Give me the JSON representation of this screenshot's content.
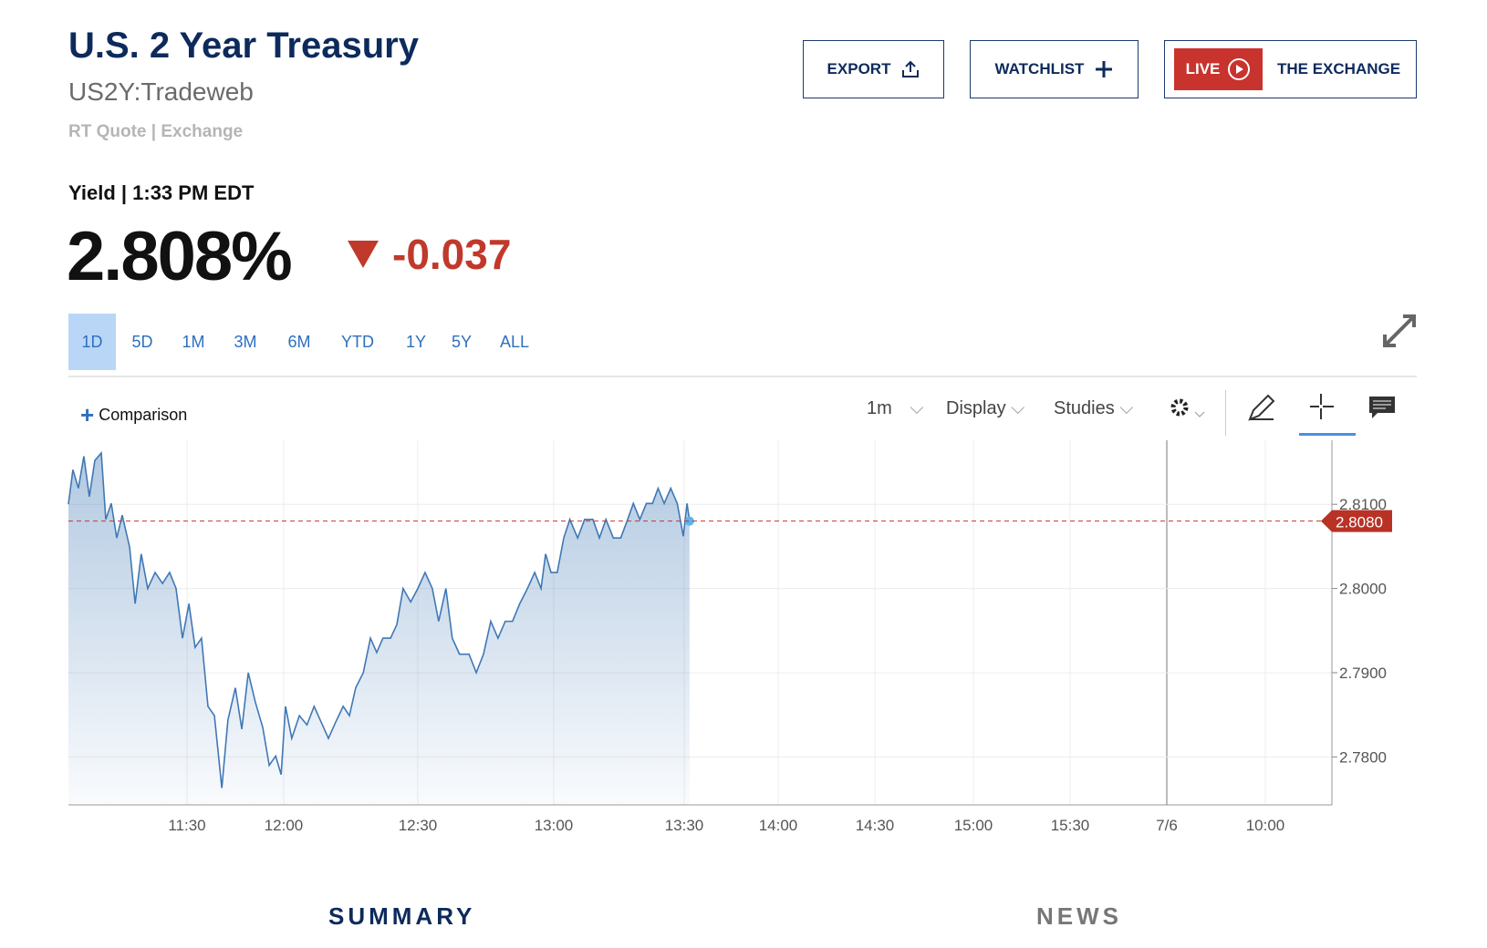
{
  "header": {
    "title": "U.S. 2 Year Treasury",
    "symbol": "US2Y:Tradeweb",
    "source": "RT Quote | Exchange",
    "quote_label": "Yield | 1:33 PM EDT",
    "last": "2.808%",
    "change": "-0.037"
  },
  "buttons": [
    "EXPORT",
    "WATCHLIST"
  ],
  "live": {
    "badge": "LIVE",
    "label": "THE EXCHANGE"
  },
  "ranges": {
    "items": [
      "1D",
      "5D",
      "1M",
      "3M",
      "6M",
      "YTD",
      "1Y",
      "5Y",
      "ALL"
    ],
    "selected": 0
  },
  "toolbar": {
    "comparison": "Comparison",
    "interval": "1m",
    "display": "Display",
    "studies": "Studies"
  },
  "tabs": [
    "SUMMARY",
    "NEWS"
  ],
  "chart_data": {
    "type": "line",
    "grid": true,
    "x": [
      653.2,
      654.6,
      656.3,
      658,
      659.7,
      661.4,
      663.4,
      664.8,
      666.5,
      668.2,
      669.9,
      672.2,
      673.9,
      675.8,
      677.8,
      680.1,
      682.4,
      684.6,
      686.6,
      688.6,
      690.6,
      692.5,
      694.5,
      696.5,
      698.5,
      700.8,
      702.7,
      705,
      707,
      709,
      711.2,
      713.5,
      715.5,
      717.5,
      719.2,
      720.4,
      721.8,
      723.5,
      725.2,
      726.8,
      728.4,
      730,
      731.6,
      733.3,
      734.7,
      736.1,
      737.8,
      739.4,
      740.8,
      742.2,
      743.9,
      745.3,
      746.7,
      748.4,
      750,
      751.6,
      753.2,
      754.6,
      756.2,
      757.6,
      759.2,
      761.3,
      762.9,
      764.5,
      766.1,
      767.7,
      769.3,
      770.9,
      772.5,
      774.2,
      775.8,
      777.2,
      778.2,
      779.4,
      780.8,
      782.3,
      783.7,
      785.5,
      787.1,
      789,
      790.5,
      792,
      793.7,
      795.4,
      797,
      798.3,
      799.8,
      801.3,
      802.7,
      804,
      805.4,
      806.9,
      808.4,
      809.8,
      810.9,
      811.7
    ],
    "series": [
      {
        "name": "US2Y",
        "color": "#3f78b5",
        "values": [
          2.81,
          2.8141,
          2.8119,
          2.8157,
          2.8109,
          2.8152,
          2.8161,
          2.8082,
          2.8101,
          2.806,
          2.8087,
          2.8049,
          2.7982,
          2.8041,
          2.8,
          2.8019,
          2.8006,
          2.8019,
          2.8,
          2.7941,
          2.7982,
          2.793,
          2.7941,
          2.786,
          2.7849,
          2.7763,
          2.7844,
          2.7882,
          2.7833,
          2.79,
          2.7865,
          2.7835,
          2.779,
          2.7801,
          2.7779,
          2.786,
          2.7822,
          2.7849,
          2.7838,
          2.786,
          2.7841,
          2.7822,
          2.7841,
          2.786,
          2.7849,
          2.7882,
          2.79,
          2.7941,
          2.7924,
          2.7941,
          2.7941,
          2.7957,
          2.8,
          2.7984,
          2.8,
          2.8019,
          2.8,
          2.7961,
          2.8,
          2.7941,
          2.7922,
          2.7922,
          2.79,
          2.7922,
          2.7961,
          2.7941,
          2.7961,
          2.7961,
          2.7982,
          2.8,
          2.8019,
          2.8,
          2.8041,
          2.8019,
          2.8019,
          2.806,
          2.8082,
          2.806,
          2.8082,
          2.8082,
          2.806,
          2.8082,
          2.806,
          2.806,
          2.8082,
          2.8101,
          2.8082,
          2.8101,
          2.8101,
          2.8119,
          2.8101,
          2.8119,
          2.8101,
          2.8062,
          2.8101,
          2.808
        ]
      }
    ],
    "ylim": [
      2.7743,
      2.8176
    ],
    "yticks": [
      {
        "value": 2.78,
        "label": "2.7800"
      },
      {
        "value": 2.79,
        "label": "2.7900"
      },
      {
        "value": 2.8,
        "label": "2.8000"
      },
      {
        "value": 2.81,
        "label": "2.8100"
      }
    ],
    "xticks": [
      {
        "value": 690,
        "label": "11:30"
      },
      {
        "value": 720,
        "label": "12:00"
      },
      {
        "value": 750,
        "label": "12:30"
      },
      {
        "value": 780,
        "label": "13:00"
      },
      {
        "value": 810,
        "label": "13:30"
      },
      {
        "value": 840,
        "label": "14:00"
      },
      {
        "value": 870,
        "label": "14:30"
      },
      {
        "value": 900,
        "label": "15:00"
      },
      {
        "value": 930,
        "label": "15:30"
      },
      {
        "value": 1440,
        "label": "7/6"
      },
      {
        "value": 2040,
        "label": "10:00"
      }
    ],
    "current_price": {
      "value": 2.808,
      "label": "2.8080"
    }
  }
}
